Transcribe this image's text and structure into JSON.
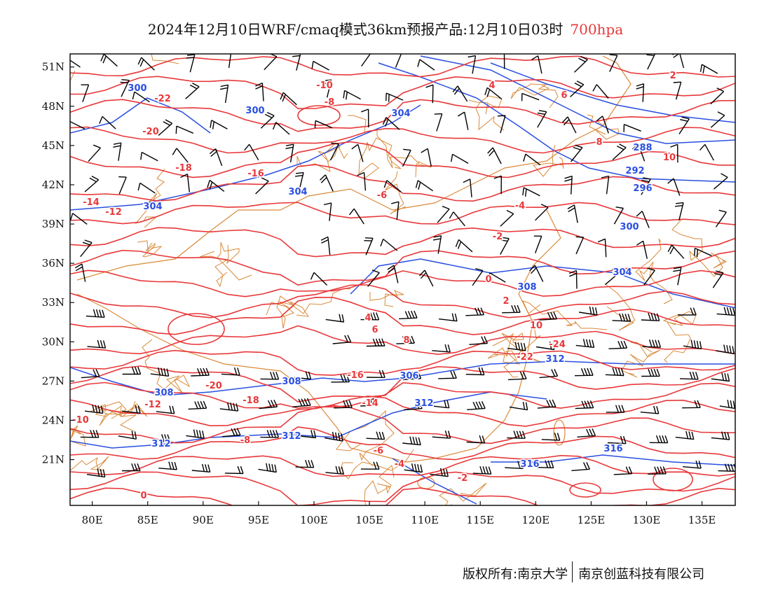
{
  "title": {
    "main": "2024年12月10日WRF/cmaq模式36km预报产品:12月10日03时",
    "level": "700hpa"
  },
  "map": {
    "lon_range": [
      78,
      138
    ],
    "lat_range": [
      17.5,
      52
    ],
    "lon_ticks": [
      "80E",
      "85E",
      "90E",
      "95E",
      "100E",
      "105E",
      "110E",
      "115E",
      "120E",
      "125E",
      "130E",
      "135E"
    ],
    "lat_ticks": [
      "51N",
      "48N",
      "45N",
      "42N",
      "39N",
      "36N",
      "33N",
      "30N",
      "27N",
      "24N",
      "21N"
    ],
    "colors": {
      "temperature": "#e8383a",
      "height": "#2a4fe0",
      "boundary": "#d98a3a",
      "wind": "#000000"
    },
    "temperature_labels": [
      "-22",
      "-20",
      "-18",
      "-16",
      "-14",
      "-12",
      "-10",
      "-8",
      "-6",
      "-4",
      "-2",
      "0",
      "2",
      "4",
      "6",
      "8",
      "10",
      "-24",
      "-22",
      "-20",
      "-18",
      "-16",
      "-14",
      "-12",
      "-10",
      "-8",
      "-6",
      "-4",
      "-2",
      "0",
      "2",
      "4",
      "6",
      "8",
      "10"
    ],
    "height_labels": [
      "300",
      "300",
      "304",
      "304",
      "304",
      "288",
      "292",
      "296",
      "300",
      "304",
      "308",
      "312",
      "308",
      "308",
      "306",
      "312",
      "312",
      "312",
      "316",
      "316"
    ]
  },
  "footer": {
    "left": "版权所有:南京大学",
    "right": "南京创蓝科技有限公司"
  }
}
